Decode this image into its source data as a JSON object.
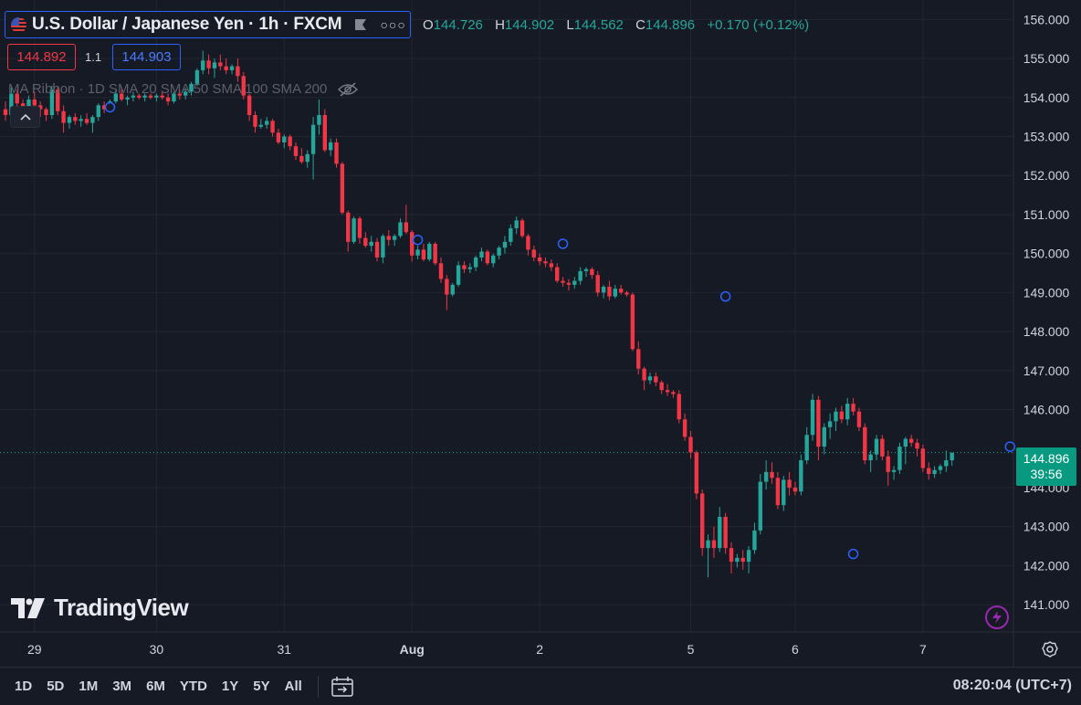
{
  "header": {
    "symbol_title": "U.S. Dollar / Japanese Yen · 1h · FXCM",
    "flag_icon": "flag-icon",
    "more_icon": "more-icon",
    "ohlc": {
      "o_label": "O",
      "o_value": "144.726",
      "h_label": "H",
      "h_value": "144.902",
      "l_label": "L",
      "l_value": "144.562",
      "c_label": "C",
      "c_value": "144.896",
      "change": "+0.170 (+0.12%)"
    }
  },
  "trade": {
    "sell_price": "144.892",
    "spread": "1.1",
    "buy_price": "144.903"
  },
  "indicator": {
    "label": "MA Ribbon · 1D SMA 20 SMA 50 SMA 100 SMA 200",
    "visibility_icon": "eye-crossed-icon"
  },
  "watermark": {
    "text": "TradingView"
  },
  "last_price": {
    "price": "144.896",
    "countdown": "39:56"
  },
  "bottom": {
    "ranges": [
      "1D",
      "5D",
      "1M",
      "3M",
      "6M",
      "YTD",
      "1Y",
      "5Y",
      "All"
    ],
    "clock": "08:20:04 (UTC+7)"
  },
  "colors": {
    "background": "#161a25",
    "grid": "#232632",
    "up": "#26a69a",
    "down": "#f23645",
    "accent": "#2962ff",
    "last_tag": "#089981"
  },
  "chart_data": {
    "type": "candlestick",
    "symbol": "USDJPY",
    "timeframe": "1h",
    "ylim": [
      140.3,
      156.5
    ],
    "yticks": [
      "156.000",
      "155.000",
      "154.000",
      "153.000",
      "152.000",
      "151.000",
      "150.000",
      "149.000",
      "148.000",
      "147.000",
      "146.000",
      "144.000",
      "143.000",
      "142.000",
      "141.000"
    ],
    "xticks": [
      {
        "label": "29",
        "i": 5
      },
      {
        "label": "30",
        "i": 26
      },
      {
        "label": "31",
        "i": 48
      },
      {
        "label": "Aug",
        "i": 70
      },
      {
        "label": "2",
        "i": 92
      },
      {
        "label": "5",
        "i": 118
      },
      {
        "label": "6",
        "i": 136
      },
      {
        "label": "7",
        "i": 158
      }
    ],
    "last_price": 144.896,
    "candles": [
      [
        153.7,
        153.9,
        153.4,
        153.55
      ],
      [
        153.55,
        154.25,
        153.3,
        154.1
      ],
      [
        154.1,
        154.2,
        153.7,
        153.85
      ],
      [
        153.85,
        153.95,
        153.55,
        153.7
      ],
      [
        153.7,
        154.05,
        153.6,
        153.95
      ],
      [
        153.95,
        154.15,
        153.7,
        153.8
      ],
      [
        153.8,
        153.9,
        153.5,
        153.7
      ],
      [
        153.7,
        153.75,
        153.4,
        153.55
      ],
      [
        153.55,
        154.3,
        153.45,
        154.2
      ],
      [
        154.2,
        154.3,
        153.55,
        153.65
      ],
      [
        153.65,
        153.8,
        153.1,
        153.35
      ],
      [
        153.35,
        153.55,
        153.2,
        153.5
      ],
      [
        153.5,
        153.6,
        153.3,
        153.4
      ],
      [
        153.4,
        153.55,
        153.25,
        153.45
      ],
      [
        153.45,
        153.6,
        153.3,
        153.35
      ],
      [
        153.35,
        153.55,
        153.1,
        153.5
      ],
      [
        153.5,
        153.85,
        153.4,
        153.8
      ],
      [
        153.8,
        153.9,
        153.6,
        153.7
      ],
      [
        153.7,
        153.95,
        153.65,
        153.9
      ],
      [
        153.9,
        154.2,
        153.85,
        154.1
      ],
      [
        154.1,
        154.25,
        153.9,
        153.95
      ],
      [
        153.95,
        154.05,
        153.8,
        154.0
      ],
      [
        154.0,
        154.15,
        153.9,
        154.05
      ],
      [
        154.05,
        154.1,
        153.95,
        154.0
      ],
      [
        154.0,
        154.1,
        153.9,
        154.05
      ],
      [
        154.05,
        154.1,
        153.95,
        154.0
      ],
      [
        154.0,
        154.1,
        153.9,
        154.05
      ],
      [
        154.05,
        154.15,
        153.95,
        154.0
      ],
      [
        154.0,
        154.1,
        153.8,
        153.9
      ],
      [
        153.9,
        154.15,
        153.85,
        154.1
      ],
      [
        154.1,
        154.2,
        153.95,
        154.05
      ],
      [
        154.05,
        154.25,
        153.95,
        154.15
      ],
      [
        154.15,
        154.4,
        154.05,
        154.35
      ],
      [
        154.35,
        154.75,
        154.3,
        154.7
      ],
      [
        154.7,
        155.2,
        154.6,
        154.95
      ],
      [
        154.95,
        155.1,
        154.6,
        154.75
      ],
      [
        154.75,
        155.0,
        154.5,
        154.9
      ],
      [
        154.9,
        155.1,
        154.7,
        154.8
      ],
      [
        154.8,
        155.0,
        154.6,
        154.7
      ],
      [
        154.7,
        154.85,
        154.6,
        154.8
      ],
      [
        154.8,
        155.0,
        154.4,
        154.55
      ],
      [
        154.55,
        154.65,
        153.95,
        154.05
      ],
      [
        154.05,
        154.1,
        153.4,
        153.55
      ],
      [
        153.55,
        153.65,
        153.1,
        153.25
      ],
      [
        153.25,
        153.45,
        153.2,
        153.3
      ],
      [
        153.3,
        153.5,
        153.2,
        153.4
      ],
      [
        153.4,
        153.45,
        153.0,
        153.1
      ],
      [
        153.1,
        153.2,
        152.8,
        152.85
      ],
      [
        152.85,
        153.05,
        152.7,
        153.0
      ],
      [
        153.0,
        153.05,
        152.65,
        152.75
      ],
      [
        152.75,
        152.85,
        152.4,
        152.5
      ],
      [
        152.5,
        152.7,
        152.3,
        152.35
      ],
      [
        152.35,
        152.65,
        152.2,
        152.55
      ],
      [
        152.55,
        153.5,
        151.9,
        153.3
      ],
      [
        153.3,
        153.95,
        153.05,
        153.55
      ],
      [
        153.55,
        153.7,
        152.6,
        152.65
      ],
      [
        152.65,
        152.95,
        152.5,
        152.85
      ],
      [
        152.85,
        152.95,
        152.2,
        152.3
      ],
      [
        152.3,
        152.35,
        151.0,
        151.05
      ],
      [
        151.05,
        151.1,
        150.05,
        150.3
      ],
      [
        150.3,
        150.95,
        150.25,
        150.9
      ],
      [
        150.9,
        150.95,
        150.25,
        150.4
      ],
      [
        150.4,
        150.55,
        150.15,
        150.2
      ],
      [
        150.2,
        150.45,
        150.05,
        150.3
      ],
      [
        150.3,
        150.4,
        149.8,
        149.9
      ],
      [
        149.9,
        150.5,
        149.75,
        150.45
      ],
      [
        150.45,
        150.6,
        150.2,
        150.35
      ],
      [
        150.35,
        150.5,
        150.2,
        150.45
      ],
      [
        150.45,
        150.9,
        150.4,
        150.8
      ],
      [
        150.8,
        151.25,
        150.5,
        150.55
      ],
      [
        150.55,
        150.6,
        149.8,
        149.95
      ],
      [
        149.95,
        150.2,
        149.85,
        150.1
      ],
      [
        150.1,
        150.25,
        149.8,
        149.85
      ],
      [
        149.85,
        150.3,
        149.8,
        150.25
      ],
      [
        150.25,
        150.3,
        149.7,
        149.75
      ],
      [
        149.75,
        149.9,
        149.25,
        149.35
      ],
      [
        149.35,
        149.45,
        148.55,
        148.95
      ],
      [
        148.95,
        149.25,
        148.9,
        149.2
      ],
      [
        149.2,
        149.8,
        149.15,
        149.7
      ],
      [
        149.7,
        149.8,
        149.5,
        149.6
      ],
      [
        149.6,
        149.75,
        149.5,
        149.65
      ],
      [
        149.65,
        149.95,
        149.55,
        149.9
      ],
      [
        149.9,
        150.15,
        149.8,
        150.05
      ],
      [
        150.05,
        150.1,
        149.7,
        149.75
      ],
      [
        149.75,
        150.0,
        149.65,
        149.95
      ],
      [
        149.95,
        150.2,
        149.85,
        150.15
      ],
      [
        150.15,
        150.45,
        150.0,
        150.3
      ],
      [
        150.3,
        150.75,
        150.2,
        150.65
      ],
      [
        150.65,
        150.95,
        150.5,
        150.85
      ],
      [
        150.85,
        150.9,
        150.4,
        150.45
      ],
      [
        150.45,
        150.5,
        149.95,
        150.1
      ],
      [
        150.1,
        150.2,
        149.8,
        149.9
      ],
      [
        149.9,
        150.0,
        149.7,
        149.8
      ],
      [
        149.8,
        149.9,
        149.65,
        149.75
      ],
      [
        149.75,
        149.85,
        149.55,
        149.65
      ],
      [
        149.65,
        149.75,
        149.25,
        149.3
      ],
      [
        149.3,
        149.4,
        149.15,
        149.25
      ],
      [
        149.25,
        149.35,
        149.05,
        149.2
      ],
      [
        149.2,
        149.4,
        149.1,
        149.3
      ],
      [
        149.3,
        149.65,
        149.2,
        149.55
      ],
      [
        149.55,
        149.65,
        149.4,
        149.6
      ],
      [
        149.6,
        149.65,
        149.35,
        149.45
      ],
      [
        149.45,
        149.55,
        148.9,
        149.0
      ],
      [
        149.0,
        149.2,
        148.85,
        149.15
      ],
      [
        149.15,
        149.3,
        148.8,
        148.9
      ],
      [
        148.9,
        149.2,
        148.85,
        149.1
      ],
      [
        149.1,
        149.2,
        148.95,
        149.0
      ],
      [
        149.0,
        149.05,
        148.9,
        148.95
      ],
      [
        148.95,
        149.0,
        147.5,
        147.55
      ],
      [
        147.55,
        147.75,
        146.9,
        147.05
      ],
      [
        147.05,
        147.1,
        146.5,
        146.75
      ],
      [
        146.75,
        146.95,
        146.65,
        146.85
      ],
      [
        146.85,
        146.95,
        146.6,
        146.7
      ],
      [
        146.7,
        146.75,
        146.4,
        146.5
      ],
      [
        146.5,
        146.65,
        146.35,
        146.45
      ],
      [
        146.45,
        146.5,
        146.3,
        146.4
      ],
      [
        146.4,
        146.5,
        145.65,
        145.75
      ],
      [
        145.75,
        145.9,
        145.2,
        145.3
      ],
      [
        145.3,
        145.45,
        144.75,
        144.9
      ],
      [
        144.9,
        144.95,
        143.7,
        143.85
      ],
      [
        143.85,
        143.95,
        142.25,
        142.45
      ],
      [
        142.45,
        142.8,
        141.7,
        142.65
      ],
      [
        142.65,
        143.0,
        142.2,
        142.45
      ],
      [
        142.45,
        143.5,
        142.35,
        143.25
      ],
      [
        143.25,
        143.35,
        142.3,
        142.45
      ],
      [
        142.45,
        142.6,
        141.8,
        142.1
      ],
      [
        142.1,
        142.3,
        141.95,
        142.2
      ],
      [
        142.2,
        142.4,
        141.9,
        142.1
      ],
      [
        142.1,
        142.5,
        141.8,
        142.4
      ],
      [
        142.4,
        143.1,
        142.3,
        142.9
      ],
      [
        142.9,
        144.35,
        142.8,
        144.15
      ],
      [
        144.15,
        144.7,
        143.95,
        144.4
      ],
      [
        144.4,
        144.65,
        144.1,
        144.25
      ],
      [
        144.25,
        144.4,
        143.45,
        143.55
      ],
      [
        143.55,
        144.3,
        143.4,
        144.2
      ],
      [
        144.2,
        144.4,
        143.8,
        144.0
      ],
      [
        144.0,
        144.15,
        143.8,
        143.9
      ],
      [
        143.9,
        144.85,
        143.8,
        144.7
      ],
      [
        144.7,
        145.55,
        144.6,
        145.35
      ],
      [
        145.35,
        146.4,
        145.2,
        146.25
      ],
      [
        146.25,
        146.35,
        144.7,
        145.05
      ],
      [
        145.05,
        145.65,
        144.85,
        145.55
      ],
      [
        145.55,
        145.9,
        145.25,
        145.7
      ],
      [
        145.7,
        146.05,
        145.45,
        145.95
      ],
      [
        145.95,
        146.1,
        145.65,
        145.75
      ],
      [
        145.75,
        146.3,
        145.6,
        146.15
      ],
      [
        146.15,
        146.3,
        145.85,
        145.95
      ],
      [
        145.95,
        146.05,
        145.45,
        145.55
      ],
      [
        145.55,
        145.65,
        144.6,
        144.7
      ],
      [
        144.7,
        144.95,
        144.4,
        144.85
      ],
      [
        144.85,
        145.35,
        144.7,
        145.25
      ],
      [
        145.25,
        145.35,
        144.7,
        144.8
      ],
      [
        144.8,
        144.95,
        144.05,
        144.4
      ],
      [
        144.4,
        144.55,
        144.2,
        144.45
      ],
      [
        144.45,
        145.15,
        144.35,
        145.05
      ],
      [
        145.05,
        145.3,
        144.6,
        145.25
      ],
      [
        145.25,
        145.35,
        145.05,
        145.15
      ],
      [
        145.15,
        145.25,
        144.8,
        145.0
      ],
      [
        145.0,
        145.1,
        144.4,
        144.5
      ],
      [
        144.5,
        144.65,
        144.2,
        144.35
      ],
      [
        144.35,
        144.55,
        144.25,
        144.45
      ],
      [
        144.45,
        144.6,
        144.35,
        144.55
      ],
      [
        144.55,
        144.95,
        144.4,
        144.7
      ],
      [
        144.7,
        144.9,
        144.56,
        144.896
      ]
    ],
    "markers": [
      {
        "i": 18,
        "price": 153.75
      },
      {
        "i": 71,
        "price": 150.35
      },
      {
        "i": 96,
        "price": 150.25
      },
      {
        "i": 124,
        "price": 148.9
      },
      {
        "i": 146,
        "price": 142.3
      },
      {
        "i": 173,
        "price": 145.05
      }
    ]
  }
}
